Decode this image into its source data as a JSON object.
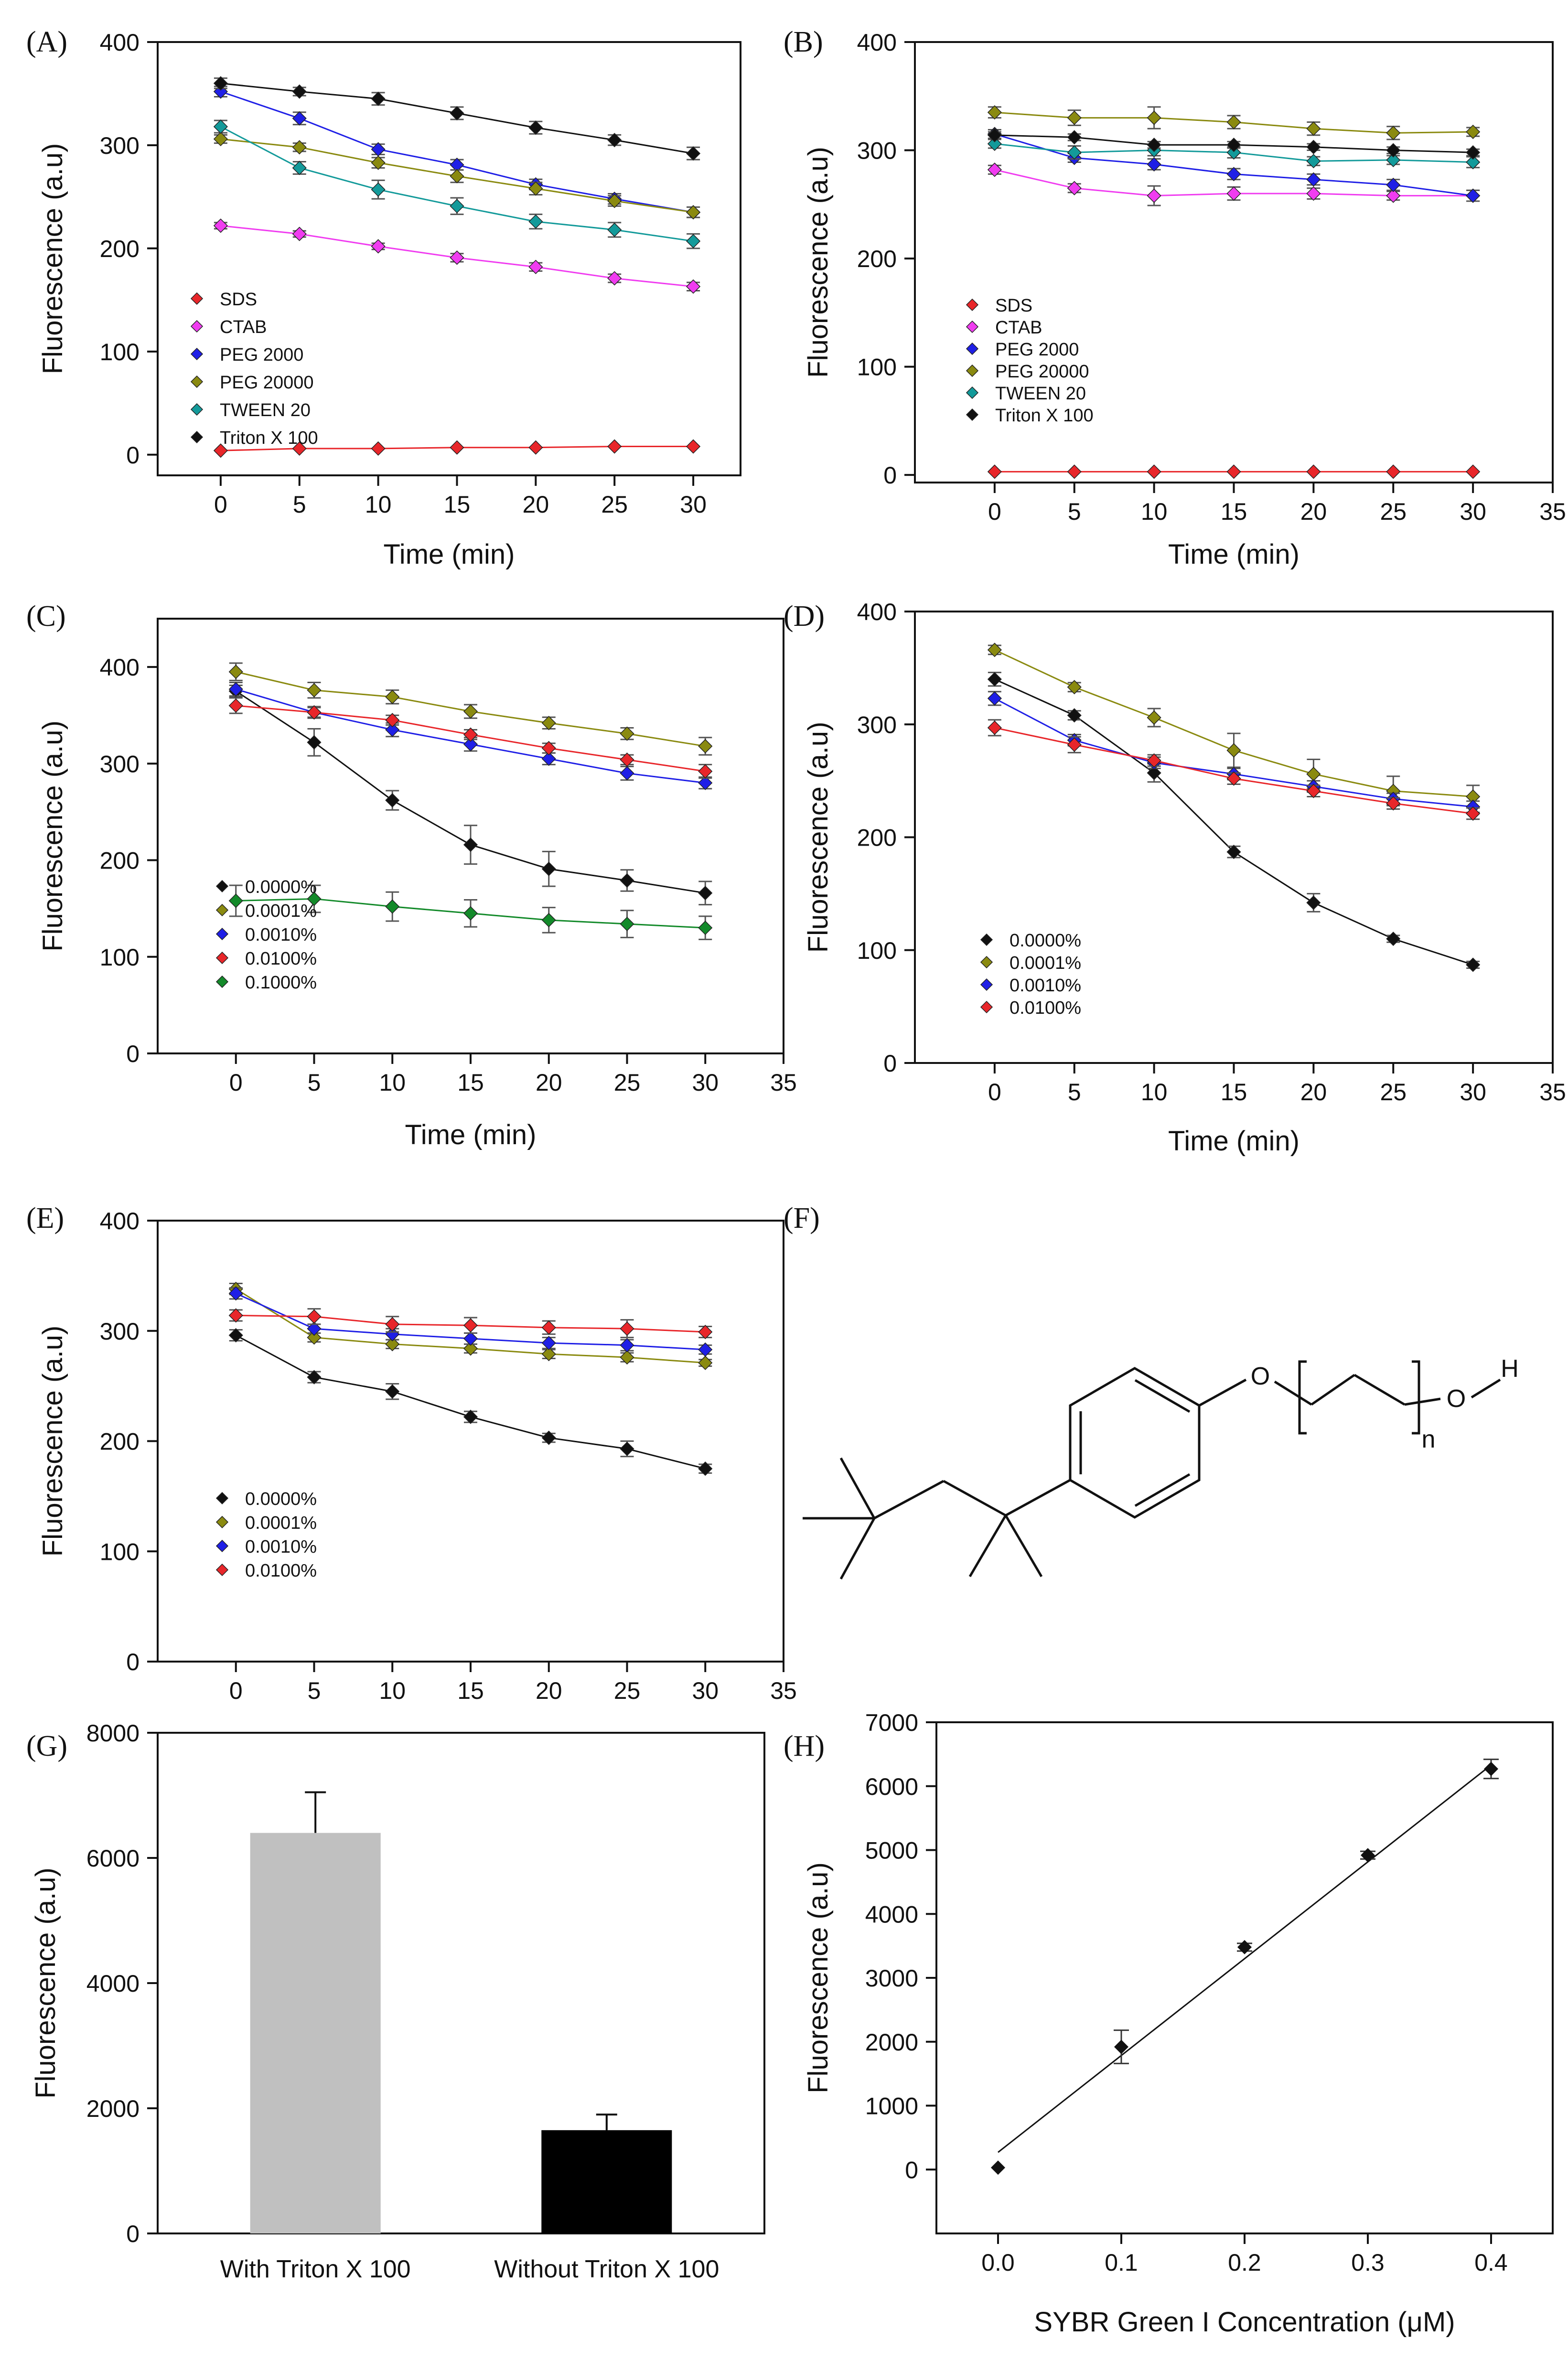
{
  "chart_data": [
    {
      "panel": "(A)",
      "type": "line",
      "title": "",
      "xlabel": "Time (min)",
      "ylabel": "Fluorescence (a.u)",
      "xlim": [
        -4,
        33
      ],
      "ylim": [
        -20,
        400
      ],
      "xticks": [
        0,
        5,
        10,
        15,
        20,
        25,
        30
      ],
      "yticks": [
        0,
        100,
        200,
        300,
        400
      ],
      "legend": "lower-left",
      "x": [
        0,
        5,
        10,
        15,
        20,
        25,
        30
      ],
      "series": [
        {
          "name": "SDS",
          "color": "#e8262a",
          "values": [
            4,
            6,
            6,
            7,
            7,
            8,
            8
          ],
          "err": [
            0,
            0,
            0,
            0,
            0,
            0,
            0
          ]
        },
        {
          "name": "CTAB",
          "color": "#f03cf0",
          "values": [
            222,
            214,
            202,
            191,
            182,
            171,
            163
          ],
          "err": [
            3,
            3,
            3,
            4,
            4,
            4,
            4
          ]
        },
        {
          "name": "PEG 2000",
          "color": "#1f1fe6",
          "values": [
            352,
            326,
            296,
            281,
            262,
            248,
            235
          ],
          "err": [
            5,
            6,
            5,
            5,
            5,
            5,
            5
          ]
        },
        {
          "name": "PEG 20000",
          "color": "#8a8a10",
          "values": [
            306,
            298,
            283,
            270,
            258,
            246,
            235
          ],
          "err": [
            4,
            4,
            5,
            6,
            6,
            5,
            5
          ]
        },
        {
          "name": "TWEEN 20",
          "color": "#139a9a",
          "values": [
            318,
            278,
            257,
            241,
            226,
            218,
            207
          ],
          "err": [
            6,
            6,
            9,
            8,
            7,
            7,
            7
          ]
        },
        {
          "name": "Triton X 100",
          "color": "#111111",
          "values": [
            360,
            352,
            345,
            331,
            317,
            305,
            292
          ],
          "err": [
            5,
            4,
            6,
            6,
            6,
            5,
            6
          ]
        }
      ]
    },
    {
      "panel": "(B)",
      "type": "line",
      "title": "",
      "xlabel": "Time (min)",
      "ylabel": "Fluorescence (a.u)",
      "xlim": [
        -5,
        35
      ],
      "ylim": [
        -7,
        400
      ],
      "xticks": [
        0,
        5,
        10,
        15,
        20,
        25,
        30,
        35
      ],
      "yticks": [
        0,
        100,
        200,
        300,
        400
      ],
      "legend": "lower-left",
      "x": [
        0,
        5,
        10,
        15,
        20,
        25,
        30
      ],
      "series": [
        {
          "name": "SDS",
          "color": "#e8262a",
          "values": [
            3,
            3,
            3,
            3,
            3,
            3,
            3
          ],
          "err": [
            0,
            0,
            0,
            0,
            0,
            0,
            0
          ]
        },
        {
          "name": "CTAB",
          "color": "#f03cf0",
          "values": [
            282,
            265,
            258,
            260,
            260,
            258,
            258
          ],
          "err": [
            4,
            4,
            9,
            6,
            5,
            4,
            5
          ]
        },
        {
          "name": "PEG 2000",
          "color": "#1f1fe6",
          "values": [
            315,
            293,
            287,
            278,
            273,
            268,
            258
          ],
          "err": [
            4,
            4,
            5,
            5,
            5,
            5,
            5
          ]
        },
        {
          "name": "PEG 20000",
          "color": "#8a8a10",
          "values": [
            335,
            330,
            330,
            326,
            320,
            316,
            317
          ],
          "err": [
            5,
            7,
            10,
            6,
            6,
            6,
            4
          ]
        },
        {
          "name": "TWEEN 20",
          "color": "#139a9a",
          "values": [
            306,
            298,
            300,
            298,
            290,
            291,
            289
          ],
          "err": [
            4,
            6,
            5,
            5,
            4,
            4,
            5
          ]
        },
        {
          "name": "Triton X 100",
          "color": "#111111",
          "values": [
            314,
            312,
            305,
            305,
            303,
            300,
            298
          ],
          "err": [
            3,
            3,
            3,
            3,
            3,
            3,
            3
          ]
        }
      ]
    },
    {
      "panel": "(C)",
      "type": "line",
      "title": "",
      "xlabel": "Time (min)",
      "ylabel": "Fluorescence (a.u)",
      "xlim": [
        -5,
        35
      ],
      "ylim": [
        0,
        450
      ],
      "xticks": [
        0,
        5,
        10,
        15,
        20,
        25,
        30,
        35
      ],
      "yticks": [
        0,
        100,
        200,
        300,
        400
      ],
      "legend": "lower-left",
      "x": [
        0,
        5,
        10,
        15,
        20,
        25,
        30
      ],
      "series": [
        {
          "name": "0.0000%",
          "color": "#111111",
          "values": [
            375,
            322,
            262,
            216,
            191,
            179,
            166
          ],
          "err": [
            6,
            14,
            10,
            20,
            18,
            11,
            12
          ]
        },
        {
          "name": "0.0001%",
          "color": "#8a8a10",
          "values": [
            395,
            376,
            369,
            354,
            342,
            331,
            318
          ],
          "err": [
            9,
            8,
            7,
            7,
            6,
            6,
            9
          ]
        },
        {
          "name": "0.0010%",
          "color": "#1f1fe6",
          "values": [
            377,
            353,
            335,
            320,
            305,
            290,
            280
          ],
          "err": [
            7,
            6,
            7,
            7,
            6,
            7,
            6
          ]
        },
        {
          "name": "0.0100%",
          "color": "#e8262a",
          "values": [
            360,
            353,
            345,
            330,
            316,
            304,
            292
          ],
          "err": [
            8,
            5,
            5,
            5,
            5,
            5,
            7
          ]
        },
        {
          "name": "0.1000%",
          "color": "#138a2a",
          "values": [
            158,
            160,
            152,
            145,
            138,
            134,
            130
          ],
          "err": [
            16,
            14,
            15,
            14,
            13,
            14,
            12
          ]
        }
      ]
    },
    {
      "panel": "(D)",
      "type": "line",
      "title": "",
      "xlabel": "Time (min)",
      "ylabel": "Fluorescence (a.u)",
      "xlim": [
        -5,
        35
      ],
      "ylim": [
        0,
        400
      ],
      "xticks": [
        0,
        5,
        10,
        15,
        20,
        25,
        30,
        35
      ],
      "yticks": [
        0,
        100,
        200,
        300,
        400
      ],
      "legend": "lower-left",
      "x": [
        0,
        5,
        10,
        15,
        20,
        25,
        30
      ],
      "series": [
        {
          "name": "0.0000%",
          "color": "#111111",
          "values": [
            340,
            308,
            257,
            187,
            142,
            110,
            87
          ],
          "err": [
            6,
            4,
            8,
            5,
            8,
            3,
            3
          ]
        },
        {
          "name": "0.0001%",
          "color": "#8a8a10",
          "values": [
            366,
            333,
            306,
            277,
            256,
            241,
            236
          ],
          "err": [
            4,
            4,
            8,
            15,
            13,
            13,
            10
          ]
        },
        {
          "name": "0.0010%",
          "color": "#1f1fe6",
          "values": [
            323,
            286,
            266,
            256,
            245,
            234,
            227
          ],
          "err": [
            6,
            5,
            5,
            5,
            5,
            5,
            5
          ]
        },
        {
          "name": "0.0100%",
          "color": "#e8262a",
          "values": [
            297,
            282,
            268,
            252,
            241,
            230,
            221
          ],
          "err": [
            7,
            7,
            5,
            5,
            5,
            5,
            5
          ]
        }
      ]
    },
    {
      "panel": "(E)",
      "type": "line",
      "title": "",
      "xlabel": "",
      "ylabel": "Fluorescence (a.u)",
      "xlim": [
        -5,
        35
      ],
      "ylim": [
        0,
        400
      ],
      "xticks": [
        0,
        5,
        10,
        15,
        20,
        25,
        30,
        35
      ],
      "yticks": [
        0,
        100,
        200,
        300,
        400
      ],
      "legend": "lower-left",
      "x": [
        0,
        5,
        10,
        15,
        20,
        25,
        30
      ],
      "series": [
        {
          "name": "0.0000%",
          "color": "#111111",
          "values": [
            296,
            258,
            245,
            222,
            203,
            193,
            175
          ],
          "err": [
            5,
            5,
            7,
            5,
            4,
            7,
            4
          ]
        },
        {
          "name": "0.0001%",
          "color": "#8a8a10",
          "values": [
            338,
            294,
            288,
            284,
            279,
            276,
            271
          ],
          "err": [
            5,
            4,
            4,
            4,
            4,
            4,
            3
          ]
        },
        {
          "name": "0.0010%",
          "color": "#1f1fe6",
          "values": [
            334,
            302,
            297,
            293,
            289,
            287,
            283
          ],
          "err": [
            5,
            4,
            5,
            5,
            5,
            5,
            4
          ]
        },
        {
          "name": "0.0100%",
          "color": "#e8262a",
          "values": [
            314,
            313,
            306,
            305,
            303,
            302,
            299
          ],
          "err": [
            5,
            7,
            7,
            7,
            6,
            8,
            5
          ]
        }
      ]
    },
    {
      "panel": "(G)",
      "type": "bar",
      "title": "",
      "xlabel": "",
      "ylabel": "Fluorescence (a.u)",
      "ylim": [
        0,
        8000
      ],
      "yticks": [
        0,
        2000,
        4000,
        6000,
        8000
      ],
      "categories": [
        "With Triton X 100",
        "Without Triton X 100"
      ],
      "values": [
        6400,
        1650
      ],
      "err": [
        650,
        250
      ],
      "colors": [
        "#c0c0c0",
        "#000000"
      ]
    },
    {
      "panel": "(H)",
      "type": "scatter",
      "title": "",
      "xlabel": "SYBR Green I Concentration (μM)",
      "ylabel": "Fluorescence (a.u)",
      "xlim": [
        -0.05,
        0.45
      ],
      "ylim": [
        -1000,
        7000
      ],
      "xticks": [
        0.0,
        0.1,
        0.2,
        0.3,
        0.4
      ],
      "xticklabels": [
        "0.0",
        "0.1",
        "0.2",
        "0.3",
        "0.4"
      ],
      "yticks": [
        0,
        1000,
        2000,
        3000,
        4000,
        5000,
        6000,
        7000
      ],
      "x": [
        0.0,
        0.1,
        0.2,
        0.3,
        0.4
      ],
      "values": [
        30,
        1920,
        3480,
        4920,
        6270
      ],
      "err": [
        0,
        260,
        60,
        60,
        150
      ],
      "fit": {
        "x": [
          0.0,
          0.4
        ],
        "y": [
          270,
          6330
        ]
      }
    }
  ],
  "panel_F": {
    "label": "(F)",
    "atoms": {
      "O1": "O",
      "O2": "O",
      "H": "H",
      "n": "n"
    }
  }
}
